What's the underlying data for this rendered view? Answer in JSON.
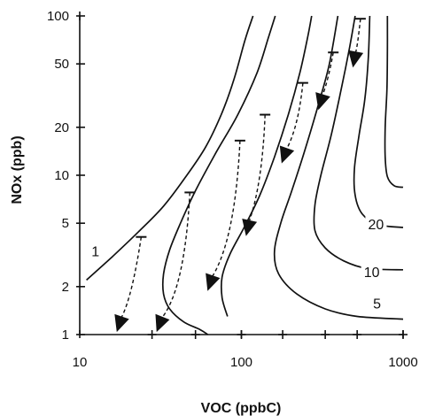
{
  "chart_data": {
    "type": "line",
    "title": "",
    "xlabel": "VOC (ppbC)",
    "ylabel": "NOx  (ppb)",
    "xscale": "log",
    "yscale": "log",
    "xlim": [
      10,
      1000
    ],
    "ylim": [
      1,
      100
    ],
    "x_ticks": [
      {
        "value": 10,
        "label": "10"
      },
      {
        "value": 100,
        "label": "100"
      },
      {
        "value": 1000,
        "label": "1000"
      }
    ],
    "y_ticks": [
      {
        "value": 100,
        "label": "100"
      },
      {
        "value": 50,
        "label": "50"
      },
      {
        "value": 20,
        "label": "20"
      },
      {
        "value": 10,
        "label": "10"
      },
      {
        "value": 5,
        "label": "5"
      },
      {
        "value": 2,
        "label": "2"
      },
      {
        "value": 1,
        "label": "1"
      }
    ],
    "grid": false,
    "contours": [
      {
        "label": "1",
        "label_at": [
          12.5,
          3.3
        ],
        "points": [
          [
            11,
            2.2
          ],
          [
            16,
            3.1
          ],
          [
            23,
            4.4
          ],
          [
            33,
            6.4
          ],
          [
            45,
            9.7
          ],
          [
            60,
            15
          ],
          [
            75,
            24
          ],
          [
            90,
            40
          ],
          [
            105,
            70
          ],
          [
            118,
            100
          ]
        ]
      },
      {
        "label": "",
        "label_at": null,
        "points": [
          [
            62,
            1
          ],
          [
            55,
            1.08
          ],
          [
            44,
            1.2
          ],
          [
            36,
            1.45
          ],
          [
            33,
            1.8
          ],
          [
            33,
            2.4
          ],
          [
            36,
            3.4
          ],
          [
            42,
            5
          ],
          [
            52,
            8
          ],
          [
            70,
            14
          ],
          [
            95,
            24
          ],
          [
            125,
            44
          ],
          [
            148,
            75
          ],
          [
            162,
            100
          ]
        ]
      },
      {
        "label": "",
        "label_at": null,
        "points": [
          [
            82,
            1.3
          ],
          [
            76,
            1.7
          ],
          [
            76,
            2.3
          ],
          [
            85,
            3.2
          ],
          [
            105,
            4.8
          ],
          [
            130,
            7.5
          ],
          [
            160,
            13
          ],
          [
            195,
            24
          ],
          [
            230,
            44
          ],
          [
            258,
            75
          ],
          [
            272,
            100
          ]
        ]
      },
      {
        "label": "5",
        "label_at": [
          690,
          1.55
        ],
        "points": [
          [
            1000,
            1.25
          ],
          [
            520,
            1.3
          ],
          [
            330,
            1.45
          ],
          [
            220,
            1.8
          ],
          [
            170,
            2.4
          ],
          [
            160,
            3.3
          ],
          [
            175,
            5
          ],
          [
            205,
            8
          ],
          [
            245,
            14
          ],
          [
            300,
            28
          ],
          [
            350,
            50
          ],
          [
            395,
            100
          ]
        ]
      },
      {
        "label": "10",
        "label_at": [
          640,
          2.45
        ],
        "points": [
          [
            1000,
            2.55
          ],
          [
            600,
            2.6
          ],
          [
            430,
            2.9
          ],
          [
            330,
            3.5
          ],
          [
            285,
            4.5
          ],
          [
            285,
            6.5
          ],
          [
            310,
            10
          ],
          [
            360,
            18
          ],
          [
            415,
            35
          ],
          [
            465,
            62
          ],
          [
            505,
            100
          ]
        ]
      },
      {
        "label": "20",
        "label_at": [
          680,
          4.9
        ],
        "points": [
          [
            1000,
            4.7
          ],
          [
            700,
            4.9
          ],
          [
            560,
            5.7
          ],
          [
            505,
            7.5
          ],
          [
            500,
            11
          ],
          [
            535,
            18
          ],
          [
            580,
            30
          ],
          [
            610,
            55
          ],
          [
            622,
            100
          ]
        ]
      },
      {
        "label": "",
        "label_at": null,
        "points": [
          [
            1000,
            8.4
          ],
          [
            880,
            8.6
          ],
          [
            800,
            9.8
          ],
          [
            775,
            13
          ],
          [
            775,
            20
          ],
          [
            795,
            35
          ],
          [
            800,
            60
          ],
          [
            800,
            100
          ]
        ]
      }
    ],
    "trajectories": [
      {
        "start": [
          24,
          4.1
        ],
        "end": [
          17,
          1.05
        ],
        "via": [
          21,
          2
        ]
      },
      {
        "start": [
          48,
          7.8
        ],
        "end": [
          30,
          1.05
        ],
        "via": [
          42,
          2.5
        ]
      },
      {
        "start": [
          98,
          16.5
        ],
        "end": [
          62,
          1.9
        ],
        "via": [
          86,
          5
        ]
      },
      {
        "start": [
          140,
          24
        ],
        "end": [
          107,
          4.2
        ],
        "via": [
          130,
          10
        ]
      },
      {
        "start": [
          240,
          38
        ],
        "end": [
          178,
          12
        ],
        "via": [
          220,
          22
        ]
      },
      {
        "start": [
          370,
          59
        ],
        "end": [
          300,
          26
        ],
        "via": [
          345,
          42
        ]
      },
      {
        "start": [
          545,
          96
        ],
        "end": [
          490,
          48
        ],
        "via": [
          525,
          70
        ]
      }
    ],
    "bottom_markers": [
      [
        28,
        1
      ],
      [
        52,
        1
      ],
      [
        100,
        1
      ],
      [
        180,
        1
      ],
      [
        330,
        1
      ],
      [
        520,
        1
      ],
      [
        1000,
        1
      ]
    ]
  }
}
